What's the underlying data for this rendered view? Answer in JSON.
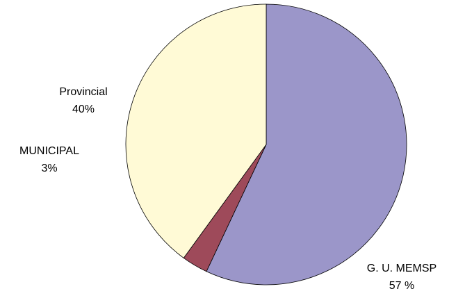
{
  "chart_data": {
    "type": "pie",
    "slices": [
      {
        "label": "G. U. MEMSP",
        "value_text": "57 %",
        "value": 57,
        "color": "#9b96c9"
      },
      {
        "label": "MUNICIPAL",
        "value_text": "3%",
        "value": 3,
        "color": "#9e4a5a"
      },
      {
        "label": "Provincial",
        "value_text": "40%",
        "value": 40,
        "color": "#fffad6"
      }
    ],
    "start_at": "top",
    "direction": "clockwise",
    "border_color": "#000000"
  }
}
